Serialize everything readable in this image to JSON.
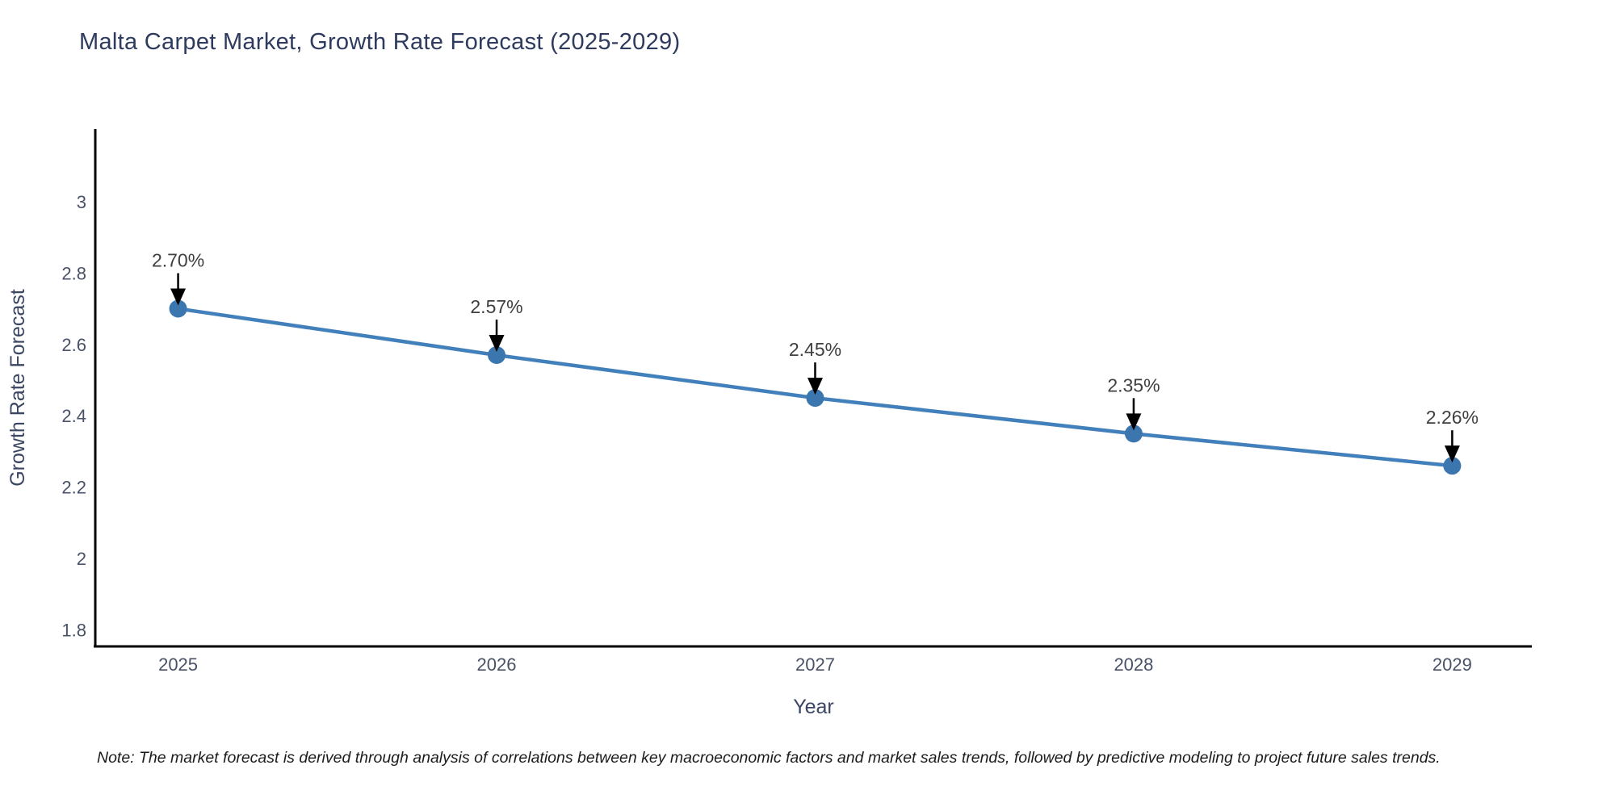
{
  "page": {
    "title": "Malta Carpet Market, Growth Rate Forecast (2025-2029)",
    "note": "Note: The market forecast is derived through analysis of correlations between key macroeconomic factors and market sales trends, followed by predictive modeling to project future sales trends."
  },
  "chart_data": {
    "type": "line",
    "title": "Malta Carpet Market, Growth Rate Forecast (2025-2029)",
    "xlabel": "Year",
    "ylabel": "Growth Rate Forecast",
    "x": [
      2025,
      2026,
      2027,
      2028,
      2029
    ],
    "values": [
      2.7,
      2.57,
      2.45,
      2.35,
      2.26
    ],
    "point_labels": [
      "2.70%",
      "2.57%",
      "2.45%",
      "2.35%",
      "2.26%"
    ],
    "x_tick_labels": [
      "2025",
      "2026",
      "2027",
      "2028",
      "2029"
    ],
    "y_ticks": [
      1.8,
      2.0,
      2.2,
      2.4,
      2.6,
      2.8,
      3.0
    ],
    "y_tick_labels": [
      "1.8",
      "2",
      "2.2",
      "2.4",
      "2.6",
      "2.8",
      "3"
    ],
    "xlim": [
      2024.74,
      2029.25
    ],
    "ylim": [
      1.754,
      3.203
    ],
    "grid": false,
    "legend": false,
    "marker": "circle",
    "annotation_arrows": true,
    "colors": {
      "line": "#4280bc",
      "marker": "#3c76ae",
      "arrow": "#000000",
      "axis": "#000000",
      "title_text": "#2e3b5e",
      "axis_title_text": "#3b4663",
      "tick_text": "#4a5268",
      "annotation_text": "#3f3f3f",
      "note_text": "#1c1c1c",
      "background": "#ffffff"
    },
    "note": "Note: The market forecast is derived through analysis of correlations between key macroeconomic factors and market sales trends, followed by predictive modeling to project future sales trends."
  }
}
